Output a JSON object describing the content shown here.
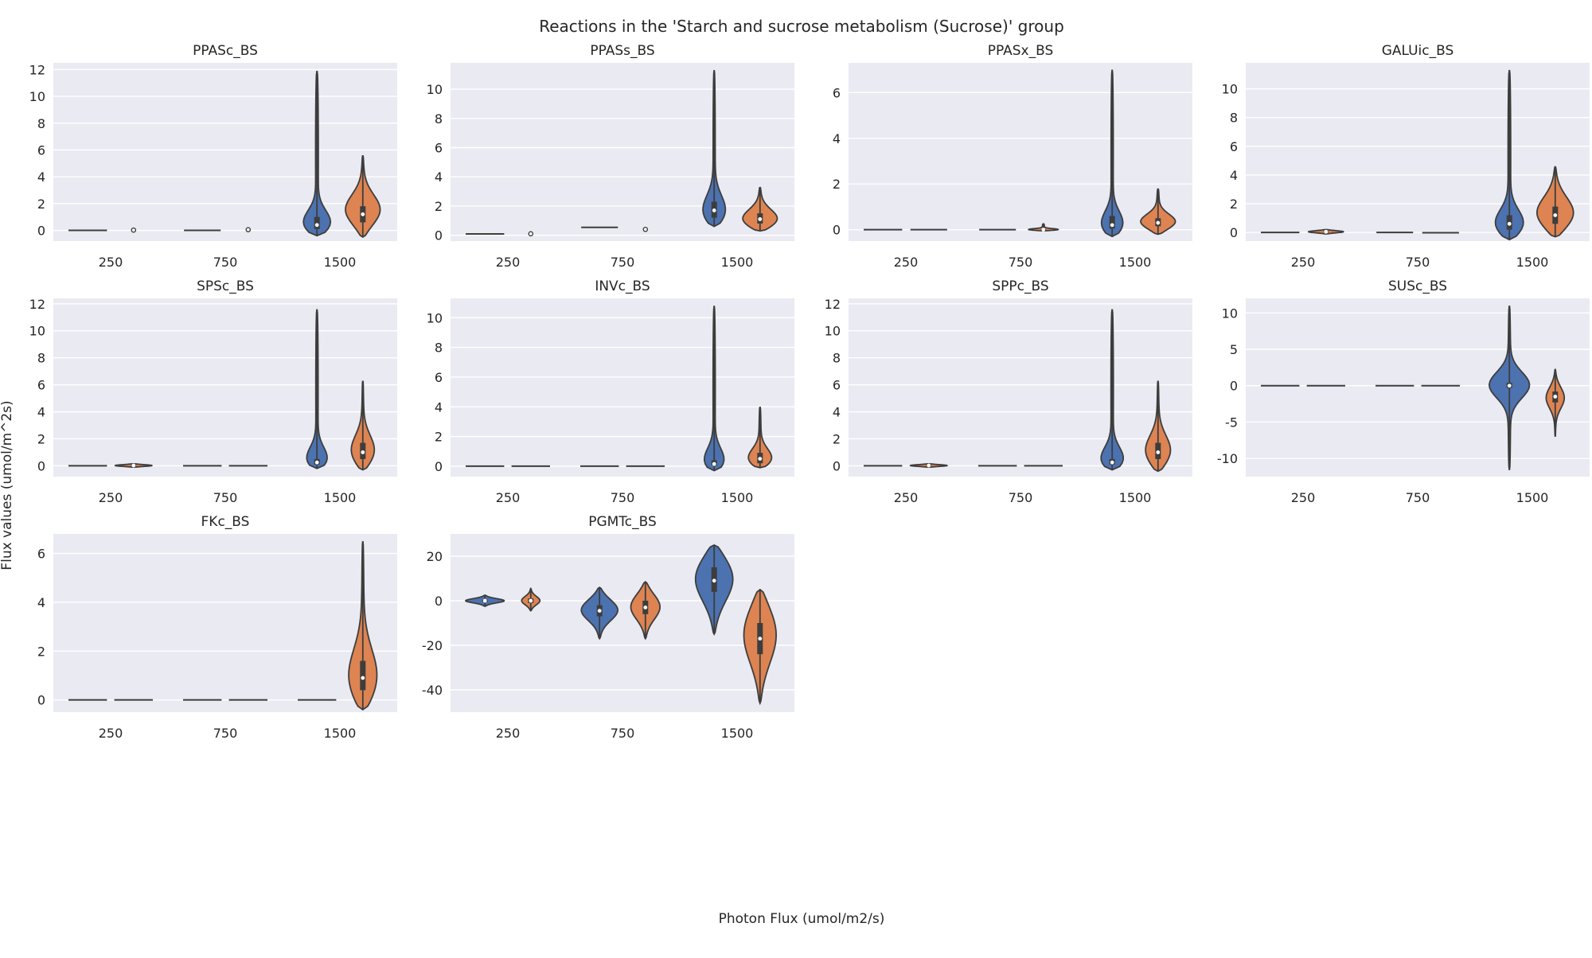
{
  "figure": {
    "title": "Reactions in the 'Starch and sucrose metabolism (Sucrose)' group",
    "xlabel": "Photon Flux (umol/m2/s)",
    "ylabel": "Flux values (umol/m^2s)"
  },
  "colors": {
    "hue_a": "#4c72b0",
    "hue_b": "#dd8452",
    "panel_bg": "#eaeaf2",
    "grid": "#ffffff",
    "edge": "#3d3d3d"
  },
  "chart_data": [
    {
      "type": "violin",
      "title": "PPASc_BS",
      "categories": [
        "250",
        "750",
        "1500"
      ],
      "ylim": [
        -0.8,
        12.5
      ],
      "yticks": [
        0,
        2,
        4,
        6,
        8,
        10,
        12
      ],
      "series": [
        {
          "color": "#4c72b0",
          "violins": [
            {
              "min": -0.05,
              "max": 0.05,
              "q1": -0.01,
              "median": 0.0,
              "q3": 0.01,
              "halfwidth": 0.42
            },
            {
              "min": -0.05,
              "max": 0.05,
              "q1": -0.01,
              "median": 0.0,
              "q3": 0.01,
              "halfwidth": 0.4
            },
            {
              "min": -0.4,
              "max": 11.9,
              "q1": 0.1,
              "median": 0.4,
              "q3": 1.0,
              "halfwidth": 0.5,
              "mode": 0.3
            }
          ]
        },
        {
          "color": "#dd8452",
          "violins": [
            {
              "min": 0.0,
              "max": 0.05,
              "q1": 0.01,
              "median": 0.02,
              "q3": 0.03,
              "halfwidth": 0.0
            },
            {
              "min": -0.05,
              "max": 0.1,
              "q1": 0.0,
              "median": 0.05,
              "q3": 0.08,
              "halfwidth": 0.0
            },
            {
              "min": -0.5,
              "max": 5.6,
              "q1": 0.6,
              "median": 1.2,
              "q3": 1.8,
              "halfwidth": 0.4,
              "mode": 1.4
            }
          ]
        }
      ]
    },
    {
      "type": "violin",
      "title": "PPASs_BS",
      "categories": [
        "250",
        "750",
        "1500"
      ],
      "ylim": [
        -0.4,
        11.8
      ],
      "yticks": [
        0,
        2,
        4,
        6,
        8,
        10
      ],
      "series": [
        {
          "color": "#4c72b0",
          "violins": [
            {
              "min": 0.05,
              "max": 0.12,
              "q1": 0.07,
              "median": 0.09,
              "q3": 0.1,
              "halfwidth": 0.42
            },
            {
              "min": 0.5,
              "max": 0.58,
              "q1": 0.52,
              "median": 0.54,
              "q3": 0.56,
              "halfwidth": 0.4
            },
            {
              "min": 0.6,
              "max": 11.3,
              "q1": 1.2,
              "median": 1.7,
              "q3": 2.3,
              "halfwidth": 0.38,
              "mode": 1.4
            }
          ]
        },
        {
          "color": "#dd8452",
          "violins": [
            {
              "min": 0.05,
              "max": 0.15,
              "q1": 0.08,
              "median": 0.1,
              "q3": 0.12,
              "halfwidth": 0.0
            },
            {
              "min": 0.3,
              "max": 0.5,
              "q1": 0.35,
              "median": 0.4,
              "q3": 0.45,
              "halfwidth": 0.0
            },
            {
              "min": 0.3,
              "max": 3.3,
              "q1": 0.8,
              "median": 1.1,
              "q3": 1.5,
              "halfwidth": 0.42,
              "mode": 1.0
            }
          ]
        }
      ]
    },
    {
      "type": "violin",
      "title": "PPASx_BS",
      "categories": [
        "250",
        "750",
        "1500"
      ],
      "ylim": [
        -0.5,
        7.3
      ],
      "yticks": [
        0,
        2,
        4,
        6
      ],
      "series": [
        {
          "color": "#4c72b0",
          "violins": [
            {
              "min": -0.02,
              "max": 0.02,
              "q1": -0.01,
              "median": 0.0,
              "q3": 0.01,
              "halfwidth": 0.42
            },
            {
              "min": -0.02,
              "max": 0.02,
              "q1": -0.01,
              "median": 0.0,
              "q3": 0.01,
              "halfwidth": 0.4
            },
            {
              "min": -0.3,
              "max": 7.0,
              "q1": 0.05,
              "median": 0.2,
              "q3": 0.6,
              "halfwidth": 0.4,
              "mode": 0.1
            }
          ]
        },
        {
          "color": "#dd8452",
          "violins": [
            {
              "min": -0.04,
              "max": 0.04,
              "q1": -0.01,
              "median": 0.0,
              "q3": 0.01,
              "halfwidth": 0.4
            },
            {
              "min": -0.05,
              "max": 0.25,
              "q1": -0.02,
              "median": 0.0,
              "q3": 0.02,
              "halfwidth": 0.4
            },
            {
              "min": -0.2,
              "max": 1.8,
              "q1": 0.15,
              "median": 0.3,
              "q3": 0.5,
              "halfwidth": 0.42,
              "mode": 0.3
            }
          ]
        }
      ]
    },
    {
      "type": "violin",
      "title": "GALUic_BS",
      "categories": [
        "250",
        "750",
        "1500"
      ],
      "ylim": [
        -0.6,
        11.8
      ],
      "yticks": [
        0,
        2,
        4,
        6,
        8,
        10
      ],
      "series": [
        {
          "color": "#4c72b0",
          "violins": [
            {
              "min": -0.03,
              "max": 0.03,
              "q1": -0.01,
              "median": 0.0,
              "q3": 0.01,
              "halfwidth": 0.42
            },
            {
              "min": -0.03,
              "max": 0.03,
              "q1": -0.01,
              "median": 0.0,
              "q3": 0.01,
              "halfwidth": 0.4
            },
            {
              "min": -0.5,
              "max": 11.3,
              "q1": 0.2,
              "median": 0.6,
              "q3": 1.2,
              "halfwidth": 0.48,
              "mode": 0.4
            }
          ]
        },
        {
          "color": "#dd8452",
          "violins": [
            {
              "min": -0.1,
              "max": 0.2,
              "q1": 0.0,
              "median": 0.05,
              "q3": 0.08,
              "halfwidth": 0.38
            },
            {
              "min": -0.1,
              "max": 0.05,
              "q1": -0.04,
              "median": -0.02,
              "q3": 0.0,
              "halfwidth": 0.4
            },
            {
              "min": -0.3,
              "max": 4.6,
              "q1": 0.6,
              "median": 1.2,
              "q3": 1.8,
              "halfwidth": 0.42,
              "mode": 1.2
            }
          ]
        }
      ]
    },
    {
      "type": "violin",
      "title": "SPSc_BS",
      "categories": [
        "250",
        "750",
        "1500"
      ],
      "ylim": [
        -0.8,
        12.4
      ],
      "yticks": [
        0,
        2,
        4,
        6,
        8,
        10,
        12
      ],
      "series": [
        {
          "color": "#4c72b0",
          "violins": [
            {
              "min": -0.02,
              "max": 0.02,
              "q1": -0.01,
              "median": 0.0,
              "q3": 0.01,
              "halfwidth": 0.42
            },
            {
              "min": -0.02,
              "max": 0.02,
              "q1": -0.01,
              "median": 0.0,
              "q3": 0.01,
              "halfwidth": 0.42
            },
            {
              "min": -0.2,
              "max": 11.6,
              "q1": 0.1,
              "median": 0.25,
              "q3": 0.5,
              "halfwidth": 0.42,
              "mode": 0.2
            }
          ]
        },
        {
          "color": "#dd8452",
          "violins": [
            {
              "min": -0.1,
              "max": 0.15,
              "q1": -0.02,
              "median": 0.02,
              "q3": 0.05,
              "halfwidth": 0.4
            },
            {
              "min": -0.02,
              "max": 0.02,
              "q1": -0.01,
              "median": 0.0,
              "q3": 0.01,
              "halfwidth": 0.42
            },
            {
              "min": -0.3,
              "max": 6.3,
              "q1": 0.5,
              "median": 1.0,
              "q3": 1.7,
              "halfwidth": 0.3,
              "mode": 0.9
            }
          ]
        }
      ]
    },
    {
      "type": "violin",
      "title": "INVc_BS",
      "categories": [
        "250",
        "750",
        "1500"
      ],
      "ylim": [
        -0.7,
        11.3
      ],
      "yticks": [
        0,
        2,
        4,
        6,
        8,
        10
      ],
      "series": [
        {
          "color": "#4c72b0",
          "violins": [
            {
              "min": -0.02,
              "max": 0.02,
              "q1": -0.01,
              "median": 0.0,
              "q3": 0.01,
              "halfwidth": 0.42
            },
            {
              "min": -0.02,
              "max": 0.02,
              "q1": -0.01,
              "median": 0.0,
              "q3": 0.01,
              "halfwidth": 0.42
            },
            {
              "min": -0.3,
              "max": 10.8,
              "q1": 0.05,
              "median": 0.15,
              "q3": 0.4,
              "halfwidth": 0.4,
              "mode": 0.1
            }
          ]
        },
        {
          "color": "#dd8452",
          "violins": [
            {
              "min": -0.02,
              "max": 0.02,
              "q1": -0.01,
              "median": 0.0,
              "q3": 0.01,
              "halfwidth": 0.42
            },
            {
              "min": -0.02,
              "max": 0.02,
              "q1": -0.01,
              "median": 0.0,
              "q3": 0.01,
              "halfwidth": 0.42
            },
            {
              "min": -0.1,
              "max": 4.0,
              "q1": 0.2,
              "median": 0.5,
              "q3": 0.9,
              "halfwidth": 0.34,
              "mode": 0.35
            }
          ]
        }
      ]
    },
    {
      "type": "violin",
      "title": "SPPc_BS",
      "categories": [
        "250",
        "750",
        "1500"
      ],
      "ylim": [
        -0.8,
        12.4
      ],
      "yticks": [
        0,
        2,
        4,
        6,
        8,
        10,
        12
      ],
      "series": [
        {
          "color": "#4c72b0",
          "violins": [
            {
              "min": -0.02,
              "max": 0.02,
              "q1": -0.01,
              "median": 0.0,
              "q3": 0.01,
              "halfwidth": 0.42
            },
            {
              "min": -0.02,
              "max": 0.02,
              "q1": -0.01,
              "median": 0.0,
              "q3": 0.01,
              "halfwidth": 0.42
            },
            {
              "min": -0.3,
              "max": 11.6,
              "q1": 0.1,
              "median": 0.25,
              "q3": 0.5,
              "halfwidth": 0.44,
              "mode": 0.2
            }
          ]
        },
        {
          "color": "#dd8452",
          "violins": [
            {
              "min": -0.1,
              "max": 0.15,
              "q1": -0.02,
              "median": 0.02,
              "q3": 0.05,
              "halfwidth": 0.4
            },
            {
              "min": -0.02,
              "max": 0.02,
              "q1": -0.01,
              "median": 0.0,
              "q3": 0.01,
              "halfwidth": 0.42
            },
            {
              "min": -0.4,
              "max": 6.3,
              "q1": 0.5,
              "median": 1.0,
              "q3": 1.7,
              "halfwidth": 0.32,
              "mode": 0.9
            }
          ]
        }
      ]
    },
    {
      "type": "violin",
      "title": "SUSc_BS",
      "categories": [
        "250",
        "750",
        "1500"
      ],
      "ylim": [
        -12.5,
        12.0
      ],
      "yticks": [
        -10,
        -5,
        0,
        5,
        10
      ],
      "series": [
        {
          "color": "#4c72b0",
          "violins": [
            {
              "min": -0.05,
              "max": 0.05,
              "q1": -0.02,
              "median": 0.0,
              "q3": 0.02,
              "halfwidth": 0.42
            },
            {
              "min": -0.05,
              "max": 0.05,
              "q1": -0.02,
              "median": 0.0,
              "q3": 0.02,
              "halfwidth": 0.42
            },
            {
              "min": -11.6,
              "max": 11.0,
              "q1": -0.3,
              "median": 0.0,
              "q3": 0.4,
              "halfwidth": 0.44,
              "mode": 0.1
            }
          ]
        },
        {
          "color": "#dd8452",
          "violins": [
            {
              "min": -0.05,
              "max": 0.05,
              "q1": -0.02,
              "median": 0.0,
              "q3": 0.02,
              "halfwidth": 0.42
            },
            {
              "min": -0.05,
              "max": 0.05,
              "q1": -0.02,
              "median": 0.0,
              "q3": 0.02,
              "halfwidth": 0.42
            },
            {
              "min": -7.0,
              "max": 2.3,
              "q1": -2.3,
              "median": -1.5,
              "q3": -0.8,
              "halfwidth": 0.2,
              "mode": -1.6
            }
          ]
        }
      ]
    },
    {
      "type": "violin",
      "title": "FKc_BS",
      "categories": [
        "250",
        "750",
        "1500"
      ],
      "ylim": [
        -0.5,
        6.8
      ],
      "yticks": [
        0,
        2,
        4,
        6
      ],
      "series": [
        {
          "color": "#4c72b0",
          "violins": [
            {
              "min": -0.02,
              "max": 0.02,
              "q1": -0.01,
              "median": 0.0,
              "q3": 0.01,
              "halfwidth": 0.42
            },
            {
              "min": -0.02,
              "max": 0.02,
              "q1": -0.01,
              "median": 0.0,
              "q3": 0.01,
              "halfwidth": 0.42
            },
            {
              "min": -0.02,
              "max": 0.02,
              "q1": -0.01,
              "median": 0.0,
              "q3": 0.01,
              "halfwidth": 0.42
            }
          ]
        },
        {
          "color": "#dd8452",
          "violins": [
            {
              "min": -0.02,
              "max": 0.02,
              "q1": -0.01,
              "median": 0.0,
              "q3": 0.01,
              "halfwidth": 0.42
            },
            {
              "min": -0.02,
              "max": 0.02,
              "q1": -0.01,
              "median": 0.0,
              "q3": 0.01,
              "halfwidth": 0.42
            },
            {
              "min": -0.4,
              "max": 6.5,
              "q1": 0.4,
              "median": 0.9,
              "q3": 1.6,
              "halfwidth": 0.38,
              "mode": 0.7
            }
          ]
        }
      ]
    },
    {
      "type": "violin",
      "title": "PGMTc_BS",
      "categories": [
        "250",
        "750",
        "1500"
      ],
      "ylim": [
        -50,
        30
      ],
      "yticks": [
        -40,
        -20,
        0,
        20
      ],
      "series": [
        {
          "color": "#4c72b0",
          "violins": [
            {
              "min": -2.5,
              "max": 2.5,
              "q1": -0.5,
              "median": 0.0,
              "q3": 0.5,
              "halfwidth": 0.42,
              "mode": 0.0
            },
            {
              "min": -17,
              "max": 6,
              "q1": -7,
              "median": -4.5,
              "q3": -2,
              "halfwidth": 0.4,
              "mode": -4.0
            },
            {
              "min": -15,
              "max": 25,
              "q1": 4,
              "median": 9,
              "q3": 15,
              "halfwidth": 0.42,
              "mode": 11
            }
          ]
        },
        {
          "color": "#dd8452",
          "violins": [
            {
              "min": -4.5,
              "max": 5.5,
              "q1": -1,
              "median": 0.0,
              "q3": 1,
              "halfwidth": 0.2,
              "mode": 0.0
            },
            {
              "min": -17,
              "max": 8.5,
              "q1": -6,
              "median": -3,
              "q3": 0,
              "halfwidth": 0.32,
              "mode": -2.5
            },
            {
              "min": -46,
              "max": 5,
              "q1": -24,
              "median": -17,
              "q3": -10,
              "halfwidth": 0.36,
              "mode": -14
            }
          ]
        }
      ]
    }
  ]
}
